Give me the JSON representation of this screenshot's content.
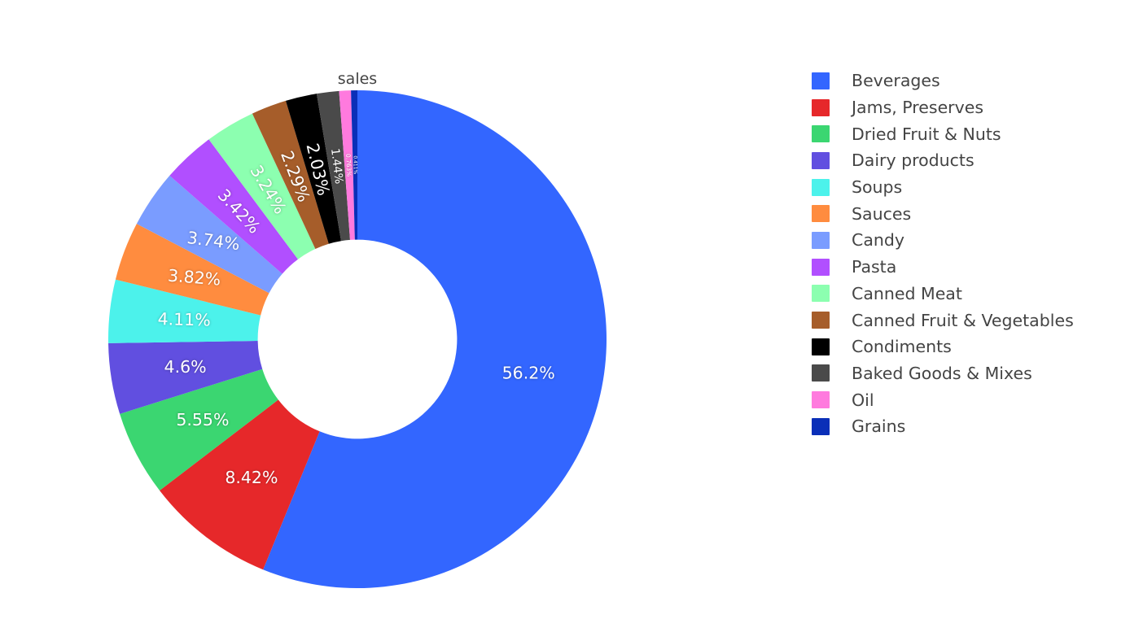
{
  "chart_data": {
    "type": "pie",
    "hole": 0.4,
    "title": "sales",
    "text_color": "#444444",
    "labels": [
      "Beverages",
      "Jams, Preserves",
      "Dried Fruit & Nuts",
      "Dairy products",
      "Soups",
      "Sauces",
      "Candy",
      "Pasta",
      "Canned Meat",
      "Canned Fruit & Vegetables",
      "Condiments",
      "Baked Goods & Mixes",
      "Oil",
      "Grains"
    ],
    "values": [
      56.2,
      8.42,
      5.55,
      4.6,
      4.11,
      3.82,
      3.74,
      3.42,
      3.24,
      2.29,
      2.03,
      1.44,
      0.763,
      0.411
    ],
    "text": [
      "56.2%",
      "8.42%",
      "5.55%",
      "4.6%",
      "4.11%",
      "3.82%",
      "3.74%",
      "3.42%",
      "3.24%",
      "2.29%",
      "2.03%",
      "1.44%",
      "0.763%",
      "0.411%"
    ],
    "colors": [
      "#3366FF",
      "#E6282A",
      "#3BD671",
      "#614FE0",
      "#4CF2EB",
      "#FF8C3F",
      "#7A9CFF",
      "#B14FFF",
      "#8CFFB0",
      "#A65D2A",
      "#000000",
      "#4A4A4A",
      "#FF7ADE",
      "#0A2FB8"
    ],
    "legend_position": "right",
    "direction": "clockwise",
    "start": "top"
  }
}
